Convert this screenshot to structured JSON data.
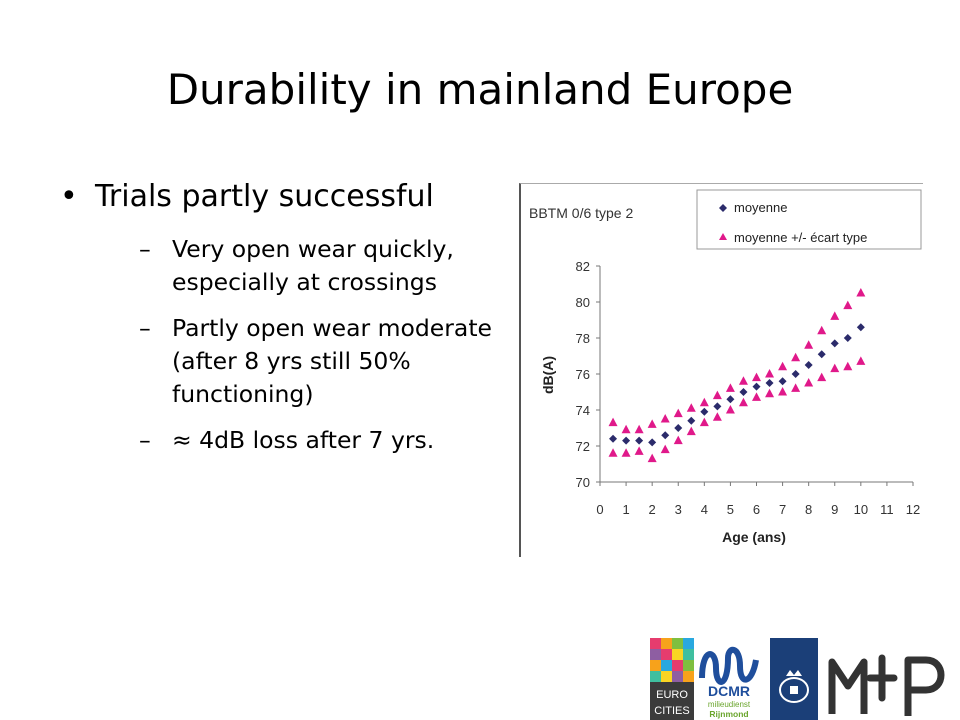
{
  "slide": {
    "title": "Durability in mainland Europe",
    "bullet": "Trials partly successful",
    "sub_bullets": [
      "Very open wear quickly, especially at crossings",
      "Partly open wear moderate (after 8 yrs still 50% functioning)",
      "≈ 4dB loss after 7 yrs."
    ],
    "dash": "–"
  },
  "chart_data": {
    "type": "scatter",
    "title": "BBTM 0/6 type 2",
    "xlabel": "Age (ans)",
    "ylabel": "dB(A)",
    "xlim": [
      0,
      12
    ],
    "ylim": [
      70,
      82
    ],
    "xticks": [
      0,
      1,
      2,
      3,
      4,
      5,
      6,
      7,
      8,
      9,
      10,
      11,
      12
    ],
    "yticks": [
      70,
      72,
      74,
      76,
      78,
      80,
      82
    ],
    "legend_position": "top-right",
    "grid": false,
    "x": [
      0.5,
      1,
      1.5,
      2,
      2.5,
      3,
      3.5,
      4,
      4.5,
      5,
      5.5,
      6,
      6.5,
      7,
      7.5,
      8,
      8.5,
      9,
      9.5,
      10
    ],
    "series": [
      {
        "name": "moyenne",
        "marker": "diamond",
        "color": "#2b2b6b",
        "values": [
          72.4,
          72.3,
          72.3,
          72.2,
          72.6,
          73.0,
          73.4,
          73.9,
          74.2,
          74.6,
          75.0,
          75.3,
          75.5,
          75.6,
          76.0,
          76.5,
          77.1,
          77.7,
          78.0,
          78.6
        ]
      },
      {
        "name": "moyenne +/- écart type",
        "marker": "triangle",
        "color": "#e0198a",
        "upper": [
          73.3,
          72.9,
          72.9,
          73.2,
          73.5,
          73.8,
          74.1,
          74.4,
          74.8,
          75.2,
          75.6,
          75.8,
          76.0,
          76.4,
          76.9,
          77.6,
          78.4,
          79.2,
          79.8,
          80.5
        ],
        "lower": [
          71.6,
          71.6,
          71.7,
          71.3,
          71.8,
          72.3,
          72.8,
          73.3,
          73.6,
          74.0,
          74.4,
          74.7,
          74.9,
          75.0,
          75.2,
          75.5,
          75.8,
          76.3,
          76.4,
          76.7
        ]
      }
    ]
  },
  "logos": {
    "eurocities": {
      "line1": "EURO",
      "line2": "CITIES"
    },
    "dcmr": {
      "name": "DCMR",
      "line1": "milieudienst",
      "line2": "Rijnmond"
    }
  },
  "colors": {
    "diamond": "#2b2b6b",
    "triangle": "#e0198a",
    "dcmr_blue": "#1f4e9c",
    "dcmr_green": "#6aa52c",
    "nl_blue": "#1b3f78"
  }
}
